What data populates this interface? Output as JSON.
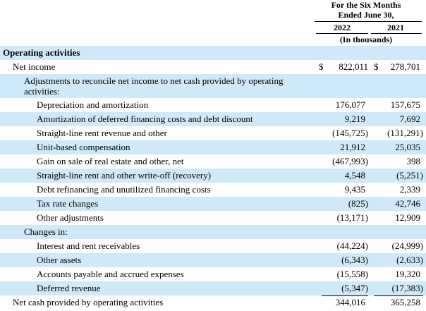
{
  "header": {
    "period_line1": "For the Six Months",
    "period_line2": "Ended June 30,",
    "col1_year": "2022",
    "col2_year": "2021",
    "units": "(In thousands)"
  },
  "section_title": "Operating activities",
  "rows": [
    {
      "label": "Net income",
      "v1": "822,011",
      "v2": "278,701",
      "dollar": "$"
    },
    {
      "label": "Adjustments to reconcile net income to net cash provided by operating activities:"
    },
    {
      "label": "Depreciation and amortization",
      "v1": "176,077",
      "v2": "157,675"
    },
    {
      "label": "Amortization of deferred financing costs and debt discount",
      "v1": "9,219",
      "v2": "7,692"
    },
    {
      "label": "Straight-line rent revenue and other",
      "v1": "(145,725)",
      "v2": "(131,291)"
    },
    {
      "label": "Unit-based compensation",
      "v1": "21,912",
      "v2": "25,035"
    },
    {
      "label": "Gain on sale of real estate and other, net",
      "v1": "(467,993)",
      "v2": "398"
    },
    {
      "label": "Straight-line rent and other write-off (recovery)",
      "v1": "4,548",
      "v2": "(5,251)"
    },
    {
      "label": "Debt refinancing and unutilized financing costs",
      "v1": "9,435",
      "v2": "2,339"
    },
    {
      "label": "Tax rate changes",
      "v1": "(825)",
      "v2": "42,746"
    },
    {
      "label": "Other adjustments",
      "v1": "(13,171)",
      "v2": "12,909"
    },
    {
      "label": "Changes in:"
    },
    {
      "label": "Interest and rent receivables",
      "v1": "(44,224)",
      "v2": "(24,999)"
    },
    {
      "label": "Other assets",
      "v1": "(6,343)",
      "v2": "(2,633)"
    },
    {
      "label": "Accounts payable and accrued expenses",
      "v1": "(15,558)",
      "v2": "19,320"
    },
    {
      "label": "Deferred revenue",
      "v1": "(5,347)",
      "v2": "(17,383)"
    },
    {
      "label": "Net cash provided by operating activities",
      "v1": "344,016",
      "v2": "365,258"
    }
  ],
  "colors": {
    "row_shade": "#cfe9f8",
    "text": "#000000"
  }
}
